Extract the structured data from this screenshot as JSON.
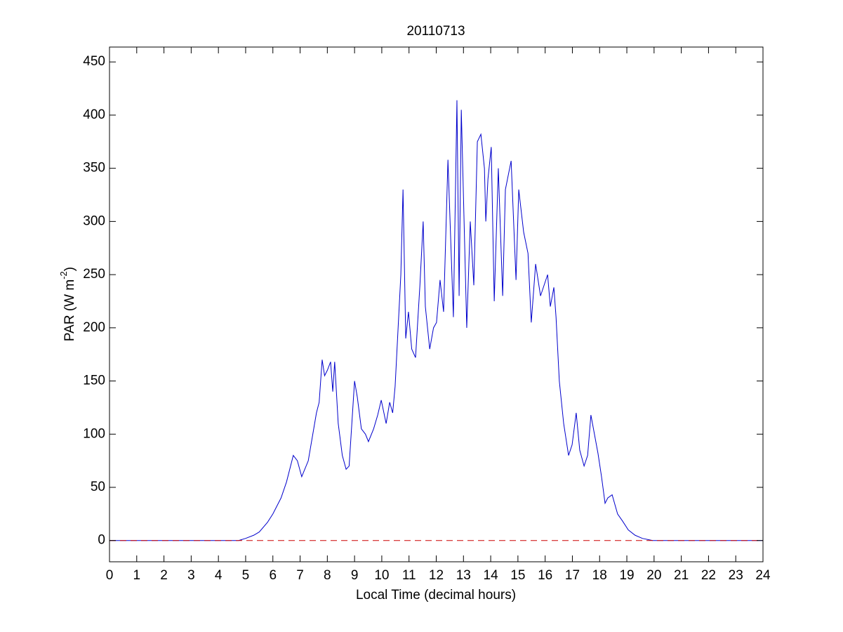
{
  "chart_data": {
    "type": "line",
    "title": "20110713",
    "xlabel": "Local Time (decimal hours)",
    "ylabel": [
      "PAR (W m",
      "-2",
      ")"
    ],
    "xlim": [
      0,
      24
    ],
    "xticks": [
      0,
      1,
      2,
      3,
      4,
      5,
      6,
      7,
      8,
      9,
      10,
      11,
      12,
      13,
      14,
      15,
      16,
      17,
      18,
      19,
      20,
      21,
      22,
      23,
      24
    ],
    "ylim": [
      -20,
      464
    ],
    "yticks": [
      0,
      50,
      100,
      150,
      200,
      250,
      300,
      350,
      400,
      450
    ],
    "grid": false,
    "series": [
      {
        "color": "#0000cc",
        "dash": false,
        "x": [
          0,
          4.74,
          5.0,
          5.3,
          5.5,
          5.8,
          6.0,
          6.3,
          6.5,
          6.75,
          6.9,
          7.06,
          7.3,
          7.6,
          7.7,
          7.81,
          7.9,
          8.0,
          8.12,
          8.2,
          8.27,
          8.4,
          8.55,
          8.69,
          8.8,
          8.9,
          9.0,
          9.1,
          9.25,
          9.4,
          9.51,
          9.7,
          9.85,
          9.98,
          10.16,
          10.29,
          10.4,
          10.49,
          10.6,
          10.7,
          10.78,
          10.88,
          10.98,
          11.1,
          11.24,
          11.4,
          11.52,
          11.6,
          11.76,
          11.9,
          12.01,
          12.14,
          12.27,
          12.43,
          12.63,
          12.76,
          12.84,
          12.92,
          13.12,
          13.25,
          13.38,
          13.51,
          13.64,
          13.77,
          13.82,
          13.9,
          14.02,
          14.13,
          14.28,
          14.44,
          14.54,
          14.75,
          14.93,
          15.03,
          15.21,
          15.37,
          15.49,
          15.65,
          15.83,
          16.09,
          16.19,
          16.32,
          16.4,
          16.52,
          16.68,
          16.86,
          16.99,
          17.14,
          17.27,
          17.43,
          17.56,
          17.68,
          17.81,
          17.94,
          18.07,
          18.2,
          18.3,
          18.46,
          18.66,
          18.85,
          19.05,
          19.3,
          19.57,
          19.95,
          24
        ],
        "values": [
          0,
          0,
          2,
          5,
          8,
          17,
          25,
          40,
          55,
          80,
          75,
          60,
          75,
          120,
          130,
          170,
          155,
          160,
          168,
          140,
          168,
          110,
          80,
          67,
          70,
          110,
          150,
          135,
          105,
          100,
          93,
          105,
          118,
          132,
          110,
          130,
          120,
          145,
          200,
          250,
          330,
          190,
          215,
          180,
          172,
          240,
          300,
          220,
          180,
          200,
          205,
          245,
          215,
          358,
          210,
          414,
          230,
          405,
          200,
          300,
          240,
          375,
          382,
          350,
          300,
          340,
          370,
          225,
          350,
          230,
          330,
          357,
          245,
          330,
          290,
          270,
          205,
          260,
          230,
          250,
          220,
          238,
          210,
          150,
          110,
          80,
          90,
          120,
          85,
          70,
          80,
          118,
          100,
          82,
          60,
          35,
          40,
          43,
          25,
          18,
          10,
          5,
          2,
          0,
          0
        ]
      },
      {
        "color": "#cc0000",
        "dash": true,
        "x": [
          0,
          24
        ],
        "values": [
          0,
          0
        ]
      }
    ]
  }
}
